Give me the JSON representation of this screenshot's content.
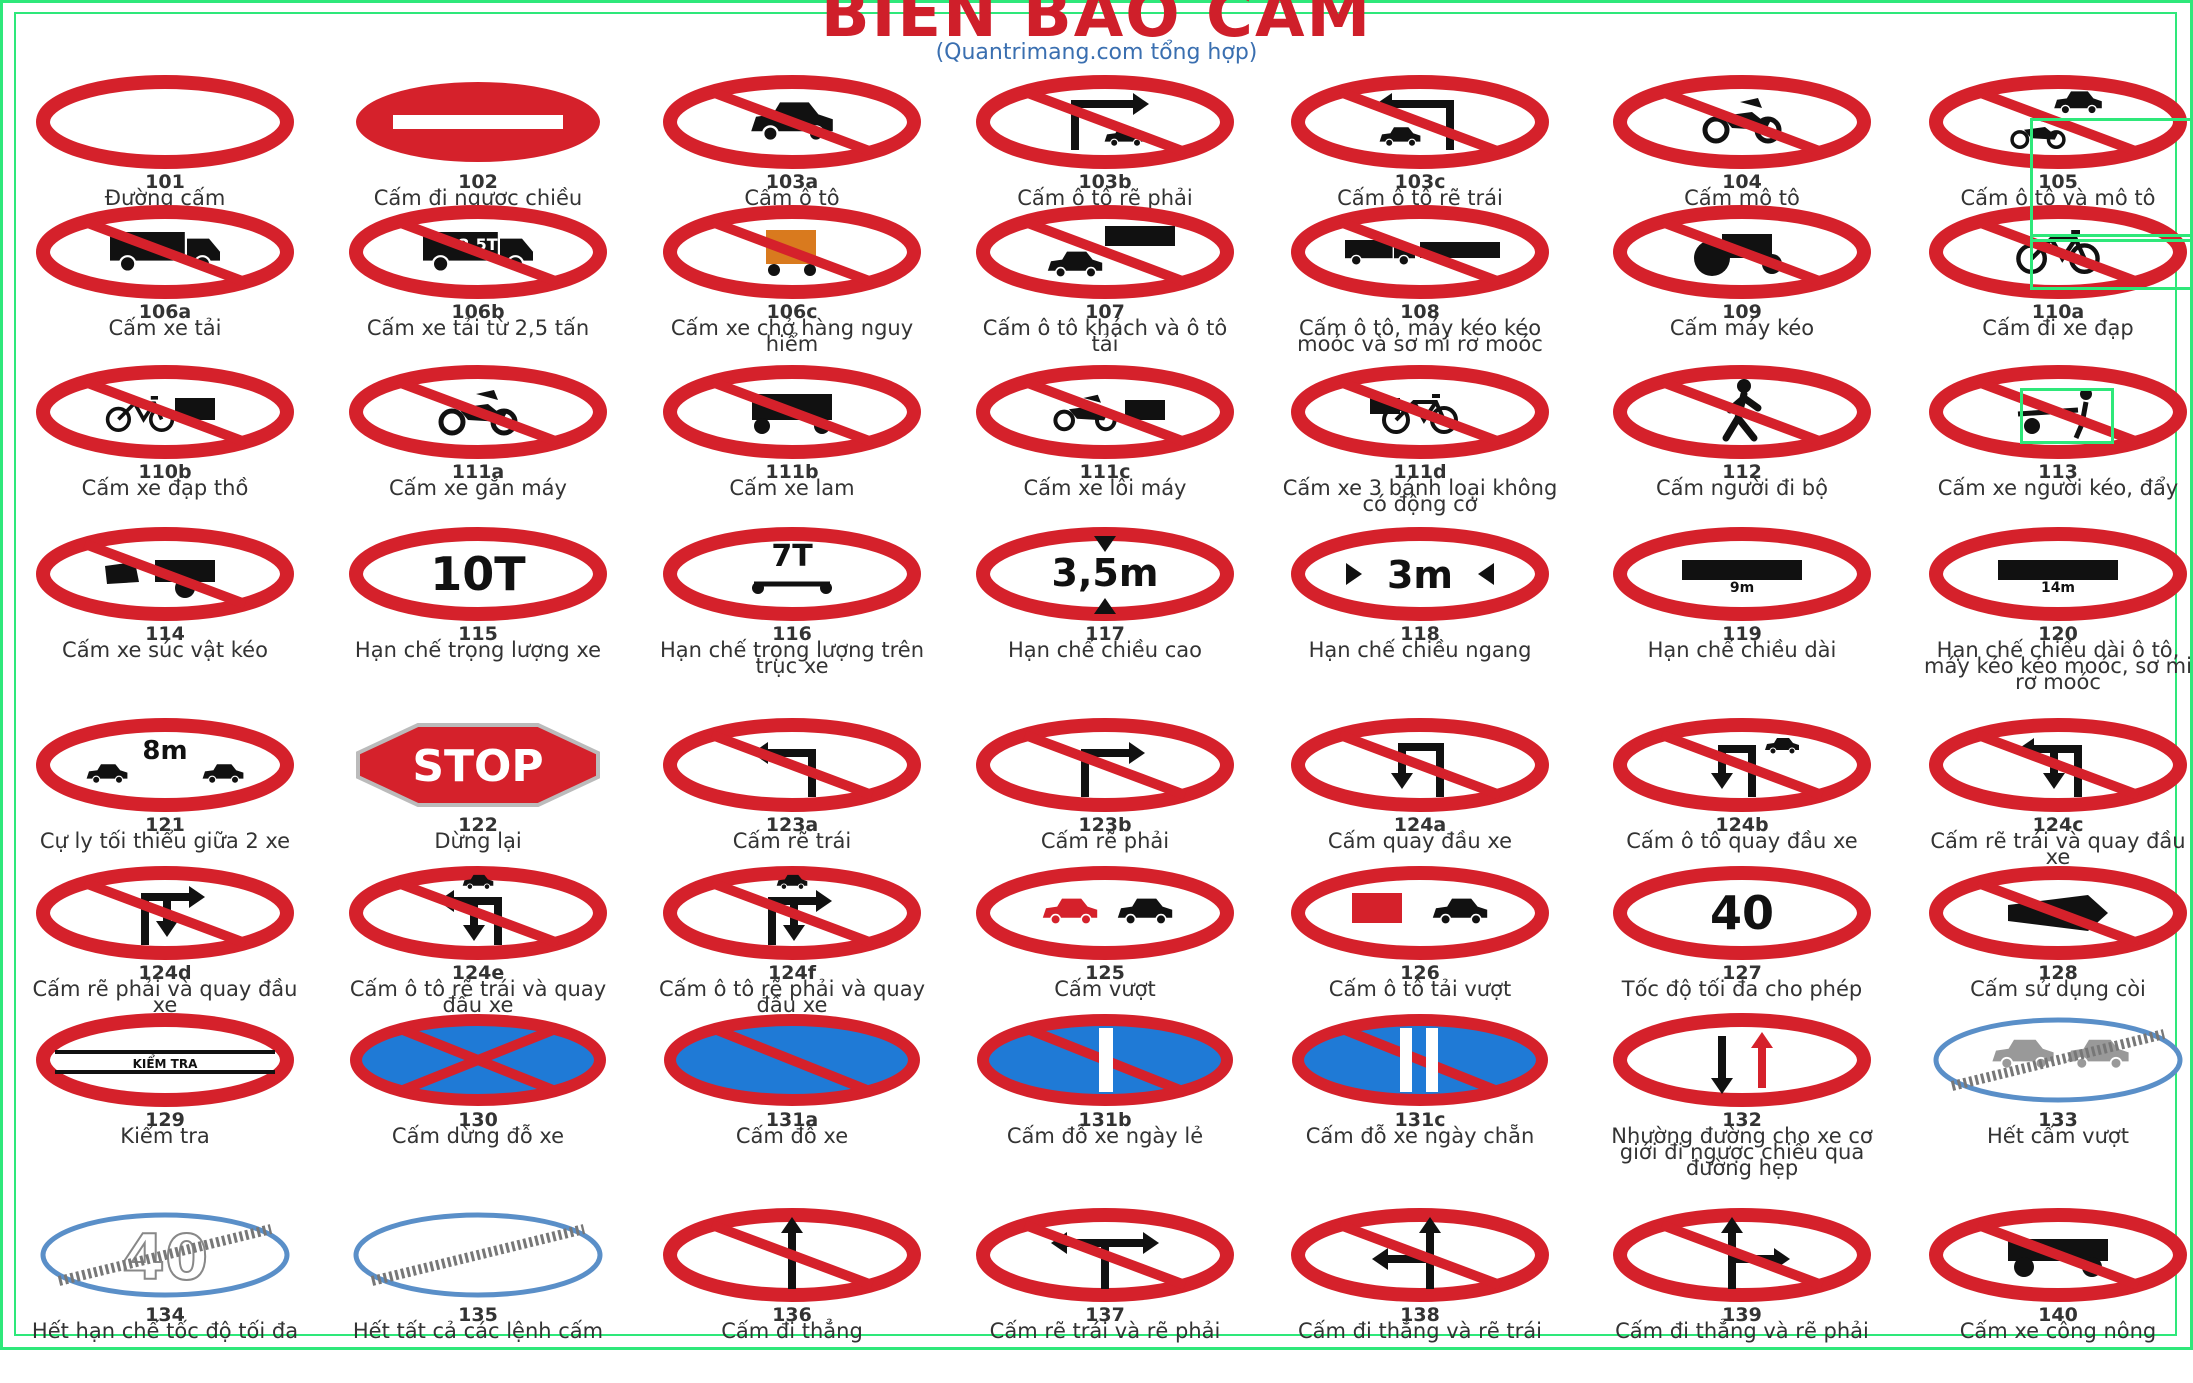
{
  "header": {
    "title": "BIỂN BÁO CẤM",
    "subtitle": "(Quantrimang.com tổng hợp)"
  },
  "colors": {
    "red": "#d5212b",
    "blue": "#1f7ad6",
    "black": "#111111",
    "frame": "#2ee87a"
  },
  "signs": [
    {
      "code": "101",
      "label": "Đường cấm",
      "icon": "empty-circle"
    },
    {
      "code": "102",
      "label": "Cấm đi ngược chiều",
      "icon": "no-entry-bar"
    },
    {
      "code": "103a",
      "label": "Cấm ô tô",
      "icon": "car"
    },
    {
      "code": "103b",
      "label": "Cấm ô tô rẽ phải",
      "icon": "car-turn-right"
    },
    {
      "code": "103c",
      "label": "Cấm ô tô rẽ trái",
      "icon": "car-turn-left"
    },
    {
      "code": "104",
      "label": "Cấm mô tô",
      "icon": "motorbike"
    },
    {
      "code": "105",
      "label": "Cấm ô tô và mô tô",
      "icon": "car-and-motorbike"
    },
    {
      "code": "106a",
      "label": "Cấm xe tải",
      "icon": "truck"
    },
    {
      "code": "106b",
      "label": "Cấm xe tải từ 2,5 tấn",
      "icon": "truck-2.5t",
      "text": "2,5T"
    },
    {
      "code": "106c",
      "label": "Cấm xe chở hàng nguy hiểm",
      "icon": "dangerous-goods-truck"
    },
    {
      "code": "107",
      "label": "Cấm ô tô khách và ô tô tải",
      "icon": "bus-and-truck"
    },
    {
      "code": "108",
      "label": "Cấm ô tô, máy kéo kéo moóc và sơ mi rơ moóc",
      "icon": "trailer"
    },
    {
      "code": "109",
      "label": "Cấm máy kéo",
      "icon": "tractor"
    },
    {
      "code": "110a",
      "label": "Cấm đi xe đạp",
      "icon": "bicycle"
    },
    {
      "code": "110b",
      "label": "Cấm xe đạp thồ",
      "icon": "cargo-bicycle"
    },
    {
      "code": "111a",
      "label": "Cấm xe gắn máy",
      "icon": "moped"
    },
    {
      "code": "111b",
      "label": "Cấm xe lam",
      "icon": "three-wheeler"
    },
    {
      "code": "111c",
      "label": "Cấm xe lôi máy",
      "icon": "motor-rickshaw"
    },
    {
      "code": "111d",
      "label": "Cấm xe 3 bánh loại không có động cơ",
      "icon": "cyclo"
    },
    {
      "code": "112",
      "label": "Cấm người đi bộ",
      "icon": "pedestrian"
    },
    {
      "code": "113",
      "label": "Cấm xe người kéo, đẩy",
      "icon": "handcart"
    },
    {
      "code": "114",
      "label": "Cấm xe súc vật kéo",
      "icon": "animal-cart"
    },
    {
      "code": "115",
      "label": "Hạn chế trọng lượng xe",
      "icon": "text",
      "text": "10T"
    },
    {
      "code": "116",
      "label": "Hạn chế trọng lượng trên trục xe",
      "icon": "axle-weight",
      "text": "7T"
    },
    {
      "code": "117",
      "label": "Hạn chế chiều cao",
      "icon": "height-limit",
      "text": "3,5m"
    },
    {
      "code": "118",
      "label": "Hạn chế chiều ngang",
      "icon": "width-limit",
      "text": "3m"
    },
    {
      "code": "119",
      "label": "Hạn chế chiều dài",
      "icon": "length-limit",
      "text": "9m"
    },
    {
      "code": "120",
      "label": "Hạn chế chiều dài ô tô, máy kéo kéo moóc, sơ mi rơ moóc",
      "icon": "length-limit-trailer",
      "text": "14m"
    },
    {
      "code": "121",
      "label": "Cự ly tối thiểu giữa 2 xe",
      "icon": "min-distance",
      "text": "8m"
    },
    {
      "code": "122",
      "label": "Dừng lại",
      "icon": "stop",
      "text": "STOP"
    },
    {
      "code": "123a",
      "label": "Cấm rẽ trái",
      "icon": "no-left-turn"
    },
    {
      "code": "123b",
      "label": "Cấm rẽ phải",
      "icon": "no-right-turn"
    },
    {
      "code": "124a",
      "label": "Cấm quay đầu xe",
      "icon": "no-u-turn"
    },
    {
      "code": "124b",
      "label": "Cấm ô tô quay đầu xe",
      "icon": "no-car-u-turn"
    },
    {
      "code": "124c",
      "label": "Cấm rẽ trái và quay đầu xe",
      "icon": "no-left-and-u-turn"
    },
    {
      "code": "124d",
      "label": "Cấm rẽ phải và quay đầu xe",
      "icon": "no-right-and-u-turn"
    },
    {
      "code": "124e",
      "label": "Cấm ô tô rẽ trái và quay đầu xe",
      "icon": "no-car-left-and-u-turn"
    },
    {
      "code": "124f",
      "label": "Cấm ô tô rẽ phải và quay đầu xe",
      "icon": "no-car-right-and-u-turn"
    },
    {
      "code": "125",
      "label": "Cấm vượt",
      "icon": "no-overtaking"
    },
    {
      "code": "126",
      "label": "Cấm ô tô tải vượt",
      "icon": "no-truck-overtaking"
    },
    {
      "code": "127",
      "label": "Tốc độ tối đa cho phép",
      "icon": "text",
      "text": "40"
    },
    {
      "code": "128",
      "label": "Cấm sử dụng còi",
      "icon": "no-horn"
    },
    {
      "code": "129",
      "label": "Kiểm tra",
      "icon": "checkpoint",
      "text": "KIỂM TRA"
    },
    {
      "code": "130",
      "label": "Cấm dừng đỗ xe",
      "icon": "no-stopping"
    },
    {
      "code": "131a",
      "label": "Cấm đỗ xe",
      "icon": "no-parking"
    },
    {
      "code": "131b",
      "label": "Cấm đỗ xe ngày lẻ",
      "icon": "no-parking-odd"
    },
    {
      "code": "131c",
      "label": "Cấm đỗ xe ngày chẵn",
      "icon": "no-parking-even"
    },
    {
      "code": "132",
      "label": "Nhường đường cho xe cơ giới đi ngược chiều qua đường hẹp",
      "icon": "priority-oncoming"
    },
    {
      "code": "133",
      "label": "Hết cấm vượt",
      "icon": "end-no-overtaking"
    },
    {
      "code": "134",
      "label": "Hết hạn chế tốc độ tối đa",
      "icon": "end-speed-limit",
      "text": "40"
    },
    {
      "code": "135",
      "label": "Hết tất cả các lệnh cấm",
      "icon": "end-all-restrictions"
    },
    {
      "code": "136",
      "label": "Cấm đi thẳng",
      "icon": "no-straight"
    },
    {
      "code": "137",
      "label": "Cấm rẽ trái và rẽ phải",
      "icon": "no-left-right"
    },
    {
      "code": "138",
      "label": "Cấm đi thẳng và rẽ trái",
      "icon": "no-straight-left"
    },
    {
      "code": "139",
      "label": "Cấm đi thẳng và rẽ phải",
      "icon": "no-straight-right"
    },
    {
      "code": "140",
      "label": "Cấm xe công nông",
      "icon": "farm-vehicle"
    }
  ]
}
